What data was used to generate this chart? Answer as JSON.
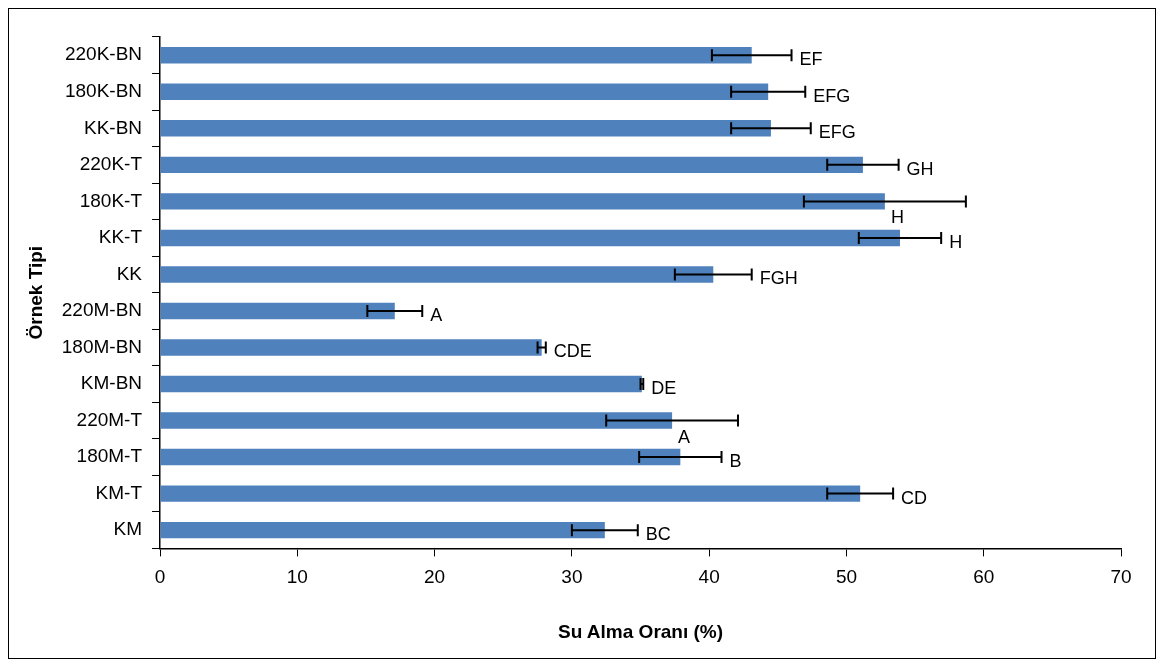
{
  "chart_data": {
    "type": "bar",
    "orientation": "horizontal",
    "xlabel": "Su Alma Oranı (%)",
    "ylabel": "Örnek Tipi",
    "categories": [
      "220K-BN",
      "180K-BN",
      "KK-BN",
      "220K-T",
      "180K-T",
      "KK-T",
      "KK",
      "220M-BN",
      "180M-BN",
      "KM-BN",
      "220M-T",
      "180M-T",
      "KM-T",
      "KM"
    ],
    "values": [
      43.1,
      44.3,
      44.5,
      51.2,
      52.8,
      53.9,
      40.3,
      17.1,
      27.8,
      35.1,
      37.3,
      37.9,
      51.0,
      32.4
    ],
    "errors": [
      2.9,
      2.7,
      2.9,
      2.6,
      5.9,
      3.0,
      2.8,
      2.0,
      0.3,
      0.1,
      4.8,
      3.0,
      2.4,
      2.4
    ],
    "value_labels": [
      "EF",
      "EFG",
      "EFG",
      "GH",
      "H",
      "H",
      "FGH",
      "A",
      "CDE",
      "DE",
      "A",
      "B",
      "CD",
      "BC"
    ],
    "color": "#4f81bd",
    "xlim": [
      0,
      70
    ],
    "xticks": [
      0,
      10,
      20,
      30,
      40,
      50,
      60,
      70
    ],
    "grid": false,
    "legend": false
  }
}
